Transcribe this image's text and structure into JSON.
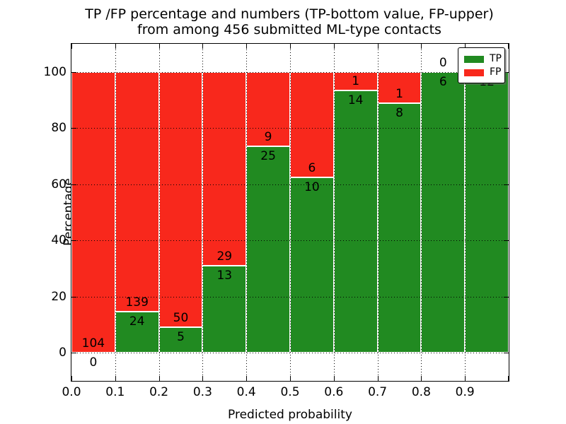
{
  "title": {
    "line1": "TP /FP percentage and numbers (TP-bottom value, FP-upper)",
    "line2": "from among 456 submitted ML-type contacts"
  },
  "chart_data": {
    "type": "bar",
    "stacked": true,
    "title": "TP /FP percentage and numbers (TP-bottom value, FP-upper) from among 456 submitted ML-type contacts",
    "xlabel": "Predicted probability",
    "ylabel": "Percentage",
    "total_contacts": 456,
    "xlim": [
      0.0,
      1.0
    ],
    "ylim": [
      -10,
      110
    ],
    "grid": "dotted black, on",
    "x_tick_labels": [
      "0.0",
      "0.1",
      "0.2",
      "0.3",
      "0.4",
      "0.5",
      "0.6",
      "0.7",
      "0.8",
      "0.9"
    ],
    "y_tick_values": [
      0,
      20,
      40,
      60,
      80,
      100
    ],
    "categories": [
      "0.0-0.1",
      "0.1-0.2",
      "0.2-0.3",
      "0.3-0.4",
      "0.4-0.5",
      "0.5-0.6",
      "0.6-0.7",
      "0.7-0.8",
      "0.8-0.9",
      "0.9-1.0"
    ],
    "series": [
      {
        "name": "TP",
        "color": "#218a21",
        "values": [
          0,
          24,
          5,
          13,
          25,
          10,
          14,
          8,
          6,
          12
        ]
      },
      {
        "name": "FP",
        "color": "#f8281c",
        "values": [
          104,
          139,
          50,
          29,
          9,
          6,
          1,
          1,
          0,
          0
        ]
      }
    ],
    "bins": [
      {
        "range": "0.0-0.1",
        "tp": 0,
        "fp": 104,
        "tp_pct": 0.0
      },
      {
        "range": "0.1-0.2",
        "tp": 24,
        "fp": 139,
        "tp_pct": 14.72
      },
      {
        "range": "0.2-0.3",
        "tp": 5,
        "fp": 50,
        "tp_pct": 9.09
      },
      {
        "range": "0.3-0.4",
        "tp": 13,
        "fp": 29,
        "tp_pct": 30.95
      },
      {
        "range": "0.4-0.5",
        "tp": 25,
        "fp": 9,
        "tp_pct": 73.53
      },
      {
        "range": "0.5-0.6",
        "tp": 10,
        "fp": 6,
        "tp_pct": 62.5
      },
      {
        "range": "0.6-0.7",
        "tp": 14,
        "fp": 1,
        "tp_pct": 93.33
      },
      {
        "range": "0.7-0.8",
        "tp": 8,
        "fp": 1,
        "tp_pct": 88.89
      },
      {
        "range": "0.8-0.9",
        "tp": 6,
        "fp": 0,
        "tp_pct": 100.0
      },
      {
        "range": "0.9-1.0",
        "tp": 12,
        "fp": 0,
        "tp_pct": 100.0
      }
    ],
    "legend": {
      "position": "upper right",
      "entries": [
        {
          "label": "TP",
          "color": "#218a21"
        },
        {
          "label": "FP",
          "color": "#f8281c"
        }
      ]
    }
  }
}
